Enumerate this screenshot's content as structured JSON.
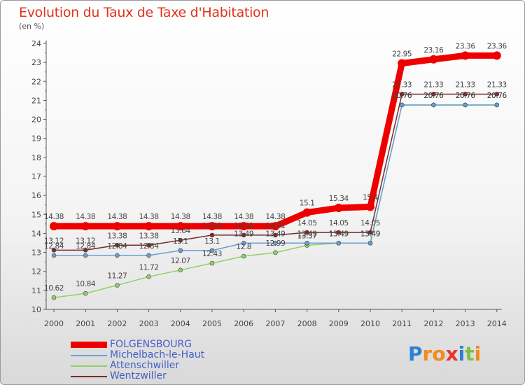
{
  "title": "Evolution du Taux de Taxe d'Habitation",
  "unit": "(en %)",
  "logo_text": "Proxiti",
  "colors": {
    "title": "#e0341c",
    "legend_text": "#4460c8",
    "axis_text": "#444444"
  },
  "chart_data": {
    "type": "line",
    "title": "Evolution du Taux de Taxe d'Habitation",
    "ylabel": "(en %)",
    "x": [
      "2000",
      "2001",
      "2002",
      "2003",
      "2004",
      "2005",
      "2006",
      "2007",
      "2008",
      "2009",
      "2010",
      "2011",
      "2012",
      "2013",
      "2014"
    ],
    "ylim": [
      10,
      24
    ],
    "yticks": [
      10,
      11,
      12,
      13,
      14,
      15,
      16,
      17,
      18,
      19,
      20,
      21,
      22,
      23,
      24
    ],
    "grid": false,
    "legend_position": "bottom-left",
    "series": [
      {
        "name": "FOLGENSBOURG",
        "color": "#ee0000",
        "width": 9,
        "values": [
          14.38,
          14.38,
          14.38,
          14.38,
          14.38,
          14.38,
          14.38,
          14.38,
          15.1,
          15.34,
          15.4,
          22.95,
          23.16,
          23.36,
          23.36
        ],
        "labels": [
          "14.38",
          "14.38",
          "14.38",
          "14.38",
          "14.38",
          "14.38",
          "14.38",
          "14.38",
          "15.1",
          "15.34",
          "15.4",
          "22.95",
          "23.16",
          "23.36",
          "23.36"
        ]
      },
      {
        "name": "Michelbach-le-Haut",
        "color": "#6a9fd3",
        "width": 1.5,
        "values": [
          12.84,
          12.84,
          12.84,
          12.84,
          13.1,
          13.1,
          13.49,
          13.49,
          13.49,
          13.49,
          13.49,
          20.76,
          20.76,
          20.76,
          20.76
        ],
        "labels": [
          "12.84",
          "12.84",
          "12.84",
          "12.84",
          "13.1",
          "13.1",
          "13.49",
          "13.49",
          "13.49",
          "13.49",
          "13.49",
          "20.76",
          "20.76",
          "20.76",
          "20.76"
        ]
      },
      {
        "name": "Attenschwiller",
        "color": "#8fd16a",
        "width": 1.5,
        "values": [
          10.62,
          10.84,
          11.27,
          11.72,
          12.07,
          12.43,
          12.8,
          12.99,
          13.37,
          13.49,
          13.49,
          20.76,
          20.76,
          20.76,
          20.76
        ],
        "labels": [
          "10.62",
          "10.84",
          "11.27",
          "11.72",
          "12.07",
          "12.43",
          "12.8",
          "12.99",
          "13.37",
          "13.49",
          "13.49",
          "20.76",
          "20.76",
          "20.76",
          "20.76"
        ]
      },
      {
        "name": "Wentzwiller",
        "color": "#7a2d2d",
        "width": 1.5,
        "values": [
          13.12,
          13.12,
          13.38,
          13.38,
          13.64,
          13.91,
          13.91,
          13.91,
          14.05,
          14.05,
          14.05,
          21.33,
          21.33,
          21.33,
          21.33
        ],
        "labels": [
          "13.12",
          "13.12",
          "13.38",
          "13.38",
          "13.64",
          "13.91",
          "13.91",
          "13.91",
          "14.05",
          "14.05",
          "14.05",
          "21.33",
          "21.33",
          "21.33",
          "21.33"
        ]
      }
    ]
  }
}
